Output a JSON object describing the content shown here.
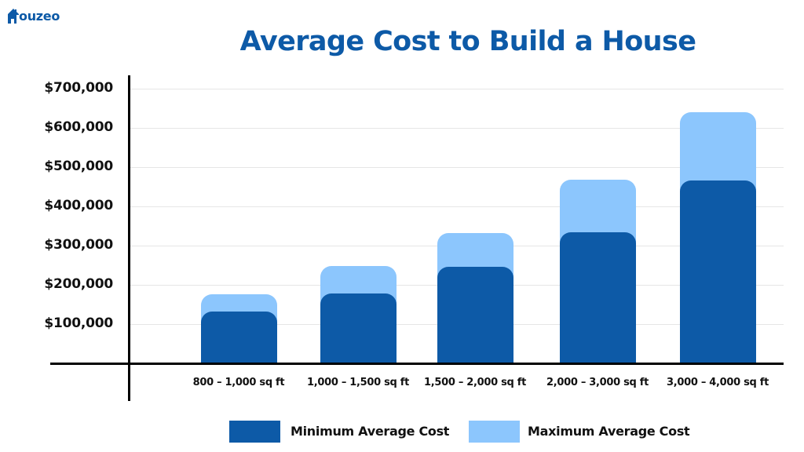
{
  "brand": {
    "name": "ouzeo",
    "full_name": "Houzeo",
    "color": "#0d5aa7"
  },
  "chart_data": {
    "type": "bar",
    "stacked": false,
    "overlapping": true,
    "title": "Average Cost to Build a House",
    "xlabel": "",
    "ylabel": "",
    "ylim": [
      0,
      700000
    ],
    "yticks": [
      100000,
      200000,
      300000,
      400000,
      500000,
      600000,
      700000
    ],
    "ytick_labels": [
      "$100,000",
      "$200,000",
      "$300,000",
      "$400,000",
      "$500,000",
      "$600,000",
      "$700,000"
    ],
    "grid": true,
    "legend_position": "bottom",
    "categories": [
      "800 – 1,000 sq ft",
      "1,000 – 1,500 sq ft",
      "1,500 – 2,000 sq ft",
      "2,000 – 3,000 sq ft",
      "3,000 – 4,000 sq ft"
    ],
    "series": [
      {
        "name": "Minimum Average Cost",
        "color": "#0d5aa7",
        "values": [
          132000,
          178000,
          246000,
          334000,
          466000
        ]
      },
      {
        "name": "Maximum Average Cost",
        "color": "#8cc6fd",
        "values": [
          176000,
          248000,
          332000,
          468000,
          640000
        ]
      }
    ]
  }
}
